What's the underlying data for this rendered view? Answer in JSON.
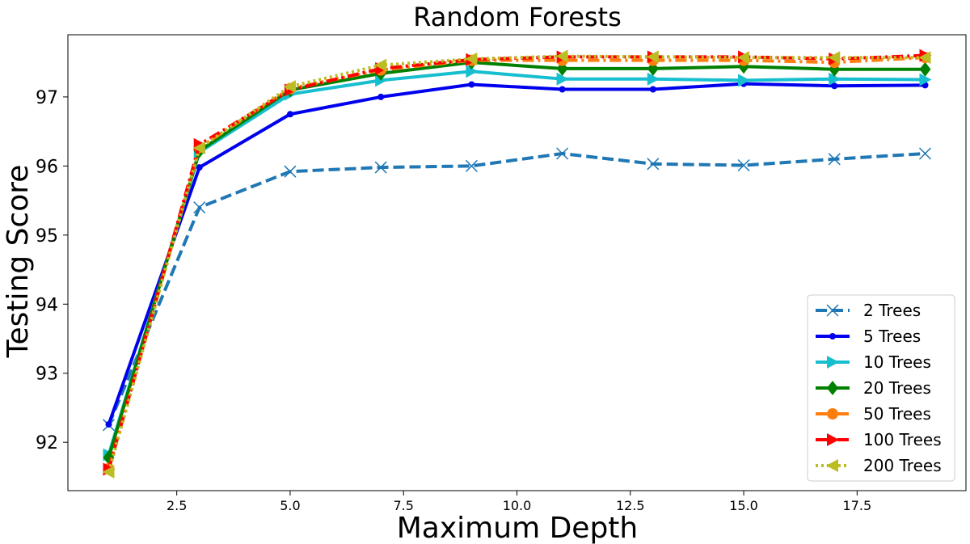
{
  "chart_data": {
    "type": "line",
    "title": "Random Forests",
    "xlabel": "Maximum Depth",
    "ylabel": "Testing Score",
    "xlim": [
      0.1,
      19.9
    ],
    "ylim": [
      91.3,
      97.9
    ],
    "x_ticks": [
      2.5,
      5.0,
      7.5,
      10.0,
      12.5,
      15.0,
      17.5
    ],
    "x_tick_labels": [
      "2.5",
      "5.0",
      "7.5",
      "10.0",
      "12.5",
      "15.0",
      "17.5"
    ],
    "y_ticks": [
      92,
      93,
      94,
      95,
      96,
      97
    ],
    "y_tick_labels": [
      "92",
      "93",
      "94",
      "95",
      "96",
      "97"
    ],
    "grid": false,
    "legend_position": "bottom-right",
    "x": [
      1,
      3,
      5,
      7,
      9,
      11,
      13,
      15,
      17,
      19
    ],
    "series": [
      {
        "name": "2 Trees",
        "color": "#1f77b4",
        "dash": "dashed",
        "marker": "x",
        "values": [
          92.25,
          95.4,
          95.92,
          95.98,
          96.0,
          96.18,
          96.03,
          96.01,
          96.1,
          96.18
        ]
      },
      {
        "name": "5 Trees",
        "color": "#0000ee",
        "dash": "solid",
        "marker": "dot",
        "values": [
          92.26,
          95.98,
          96.75,
          97.0,
          97.18,
          97.11,
          97.11,
          97.19,
          97.16,
          97.17
        ]
      },
      {
        "name": "10 Trees",
        "color": "#17becf",
        "dash": "solid",
        "marker": "triangle-right",
        "values": [
          91.82,
          96.2,
          97.04,
          97.24,
          97.37,
          97.26,
          97.26,
          97.24,
          97.26,
          97.25
        ]
      },
      {
        "name": "20 Trees",
        "color": "#008000",
        "dash": "solid",
        "marker": "diamond",
        "values": [
          91.78,
          96.22,
          97.1,
          97.34,
          97.5,
          97.41,
          97.41,
          97.44,
          97.4,
          97.4
        ]
      },
      {
        "name": "50 Trees",
        "color": "#ff7f0e",
        "dash": "dashdot",
        "marker": "circle",
        "values": [
          91.62,
          96.27,
          97.12,
          97.39,
          97.53,
          97.53,
          97.53,
          97.53,
          97.5,
          97.57
        ]
      },
      {
        "name": "100 Trees",
        "color": "#ff0000",
        "dash": "dashdot",
        "marker": "triangle-right",
        "values": [
          91.61,
          96.31,
          97.1,
          97.41,
          97.54,
          97.58,
          97.58,
          97.58,
          97.55,
          97.6
        ]
      },
      {
        "name": "200 Trees",
        "color": "#bcbd22",
        "dash": "dotted",
        "marker": "triangle-left",
        "values": [
          91.57,
          96.26,
          97.15,
          97.46,
          97.55,
          97.59,
          97.58,
          97.57,
          97.57,
          97.57
        ]
      }
    ]
  }
}
